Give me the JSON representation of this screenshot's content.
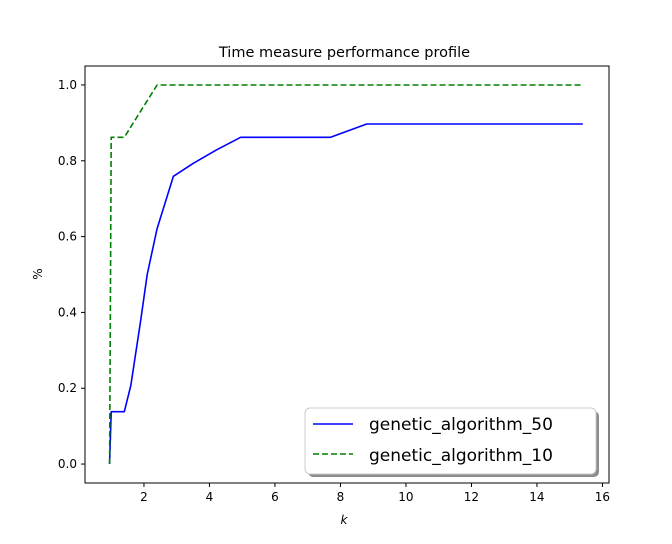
{
  "chart_data": {
    "type": "line",
    "title": "Time measure performance profile",
    "xlabel": "k",
    "ylabel": "%",
    "xlim": [
      0.2,
      16.2
    ],
    "ylim": [
      -0.05,
      1.05
    ],
    "xticks": [
      2,
      4,
      6,
      8,
      10,
      12,
      14,
      16
    ],
    "yticks": [
      0.0,
      0.2,
      0.4,
      0.6,
      0.8,
      1.0
    ],
    "grid": false,
    "legend_position": "lower-right",
    "series": [
      {
        "name": "genetic_algorithm_50",
        "color": "#0000ff",
        "linestyle": "solid",
        "x": [
          0.95,
          1.0,
          1.05,
          1.4,
          1.6,
          1.9,
          2.1,
          2.4,
          2.9,
          3.5,
          4.2,
          4.95,
          5.5,
          7.7,
          8.8,
          15.4
        ],
        "y": [
          0.0,
          0.138,
          0.138,
          0.138,
          0.207,
          0.379,
          0.5,
          0.621,
          0.759,
          0.793,
          0.828,
          0.862,
          0.862,
          0.862,
          0.897,
          0.897
        ]
      },
      {
        "name": "genetic_algorithm_10",
        "color": "#008000",
        "linestyle": "dashed",
        "x": [
          0.95,
          1.0,
          1.05,
          1.4,
          1.9,
          2.4,
          15.4
        ],
        "y": [
          0.0,
          0.862,
          0.862,
          0.862,
          0.931,
          1.0,
          1.0
        ]
      }
    ]
  }
}
